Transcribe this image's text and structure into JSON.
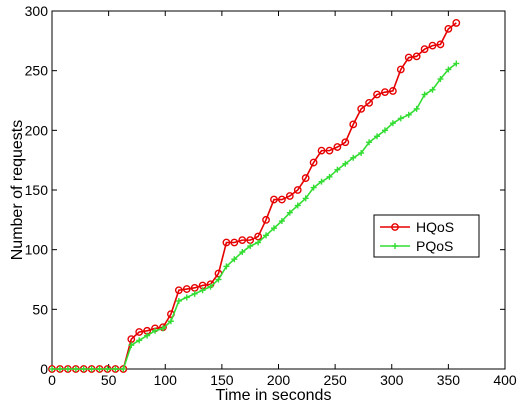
{
  "chart_data": {
    "type": "line",
    "xlabel": "Time in seconds",
    "ylabel": "Number of requests",
    "xlim": [
      0,
      400
    ],
    "ylim": [
      0,
      300
    ],
    "xticks": [
      0,
      50,
      100,
      150,
      200,
      250,
      300,
      350,
      400
    ],
    "yticks": [
      0,
      50,
      100,
      150,
      200,
      250,
      300
    ],
    "grid": false,
    "legend_position": "right",
    "series": [
      {
        "name": "HQoS",
        "color": "#e60000",
        "marker": "circle",
        "x": [
          0,
          7,
          14,
          21,
          28,
          35,
          42,
          49,
          56,
          63,
          70,
          77,
          84,
          91,
          98,
          105,
          112,
          119,
          126,
          133,
          140,
          147,
          154,
          161,
          168,
          175,
          182,
          189,
          196,
          203,
          210,
          217,
          224,
          231,
          238,
          245,
          252,
          259,
          266,
          273,
          280,
          287,
          294,
          301,
          308,
          315,
          322,
          329,
          336,
          343,
          350,
          357
        ],
        "values": [
          0,
          0,
          0,
          0,
          0,
          0,
          0,
          0,
          0,
          0,
          25,
          31,
          32,
          34,
          35,
          46,
          66,
          67,
          68,
          70,
          71,
          80,
          106,
          106,
          108,
          108,
          111,
          125,
          142,
          142,
          145,
          150,
          160,
          173,
          183,
          183,
          186,
          190,
          205,
          218,
          223,
          230,
          232,
          233,
          251,
          261,
          262,
          268,
          271,
          272,
          285,
          290
        ]
      },
      {
        "name": "PQoS",
        "color": "#33dd33",
        "marker": "plus",
        "x": [
          0,
          7,
          14,
          21,
          28,
          35,
          42,
          49,
          56,
          63,
          70,
          77,
          84,
          91,
          98,
          105,
          112,
          119,
          126,
          133,
          140,
          147,
          154,
          161,
          168,
          175,
          182,
          189,
          196,
          203,
          210,
          217,
          224,
          231,
          238,
          245,
          252,
          259,
          266,
          273,
          280,
          287,
          294,
          301,
          308,
          315,
          322,
          329,
          336,
          343,
          350,
          357
        ],
        "values": [
          0,
          0,
          0,
          0,
          0,
          0,
          0,
          0,
          0,
          0,
          20,
          24,
          28,
          32,
          34,
          40,
          57,
          60,
          63,
          66,
          69,
          75,
          86,
          92,
          98,
          103,
          106,
          112,
          118,
          124,
          131,
          137,
          143,
          152,
          157,
          161,
          167,
          172,
          177,
          181,
          190,
          195,
          200,
          206,
          210,
          213,
          218,
          230,
          234,
          243,
          251,
          256
        ]
      }
    ]
  }
}
